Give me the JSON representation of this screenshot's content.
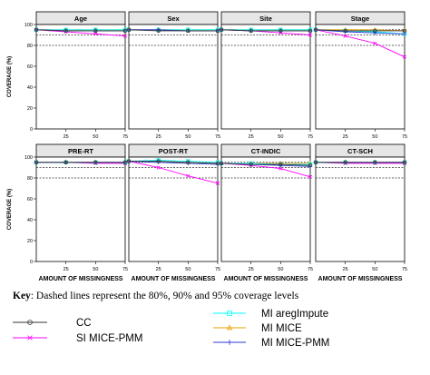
{
  "chart_data": {
    "type": "line",
    "x": [
      0,
      25,
      50,
      75
    ],
    "xticks": [
      "25",
      "50",
      "75"
    ],
    "xlim": [
      0,
      75
    ],
    "ylim": [
      0,
      100
    ],
    "yticks": [
      "0",
      "20",
      "40",
      "60",
      "80",
      "100"
    ],
    "xlabel": "AMOUNT OF MISSINGNESS",
    "ylabel": "COVERAGE (%)",
    "reference_lines": [
      80,
      90,
      95
    ],
    "panels": [
      {
        "title": "Age",
        "series": [
          {
            "name": "CC",
            "values": [
              95,
              94,
              94,
              94
            ]
          },
          {
            "name": "SI MICE-PMM",
            "values": [
              95,
              93,
              91,
              89
            ]
          },
          {
            "name": "MI aregImpute",
            "values": [
              95,
              95,
              95,
              95
            ]
          },
          {
            "name": "MI MICE",
            "values": [
              95,
              95,
              95,
              95
            ]
          },
          {
            "name": "MI MICE-PMM",
            "values": [
              95,
              94,
              94,
              94
            ]
          }
        ]
      },
      {
        "title": "Sex",
        "series": [
          {
            "name": "CC",
            "values": [
              95,
              94,
              94,
              94
            ]
          },
          {
            "name": "SI MICE-PMM",
            "values": [
              95,
              95,
              94,
              94
            ]
          },
          {
            "name": "MI aregImpute",
            "values": [
              95,
              95,
              95,
              95
            ]
          },
          {
            "name": "MI MICE",
            "values": [
              95,
              95,
              95,
              95
            ]
          },
          {
            "name": "MI MICE-PMM",
            "values": [
              95,
              95,
              94,
              94
            ]
          }
        ]
      },
      {
        "title": "Site",
        "series": [
          {
            "name": "CC",
            "values": [
              95,
              94,
              94,
              94
            ]
          },
          {
            "name": "SI MICE-PMM",
            "values": [
              95,
              94,
              92,
              90
            ]
          },
          {
            "name": "MI aregImpute",
            "values": [
              95,
              95,
              95,
              95
            ]
          },
          {
            "name": "MI MICE",
            "values": [
              95,
              95,
              95,
              95
            ]
          },
          {
            "name": "MI MICE-PMM",
            "values": [
              95,
              94,
              94,
              94
            ]
          }
        ]
      },
      {
        "title": "Stage",
        "series": [
          {
            "name": "CC",
            "values": [
              95,
              94,
              94,
              94
            ]
          },
          {
            "name": "SI MICE-PMM",
            "values": [
              95,
              89,
              82,
              69
            ]
          },
          {
            "name": "MI aregImpute",
            "values": [
              95,
              94,
              93,
              91
            ]
          },
          {
            "name": "MI MICE",
            "values": [
              95,
              95,
              95,
              94
            ]
          },
          {
            "name": "MI MICE-PMM",
            "values": [
              95,
              93,
              92,
              91
            ]
          }
        ]
      },
      {
        "title": "PRE-RT",
        "series": [
          {
            "name": "CC",
            "values": [
              95,
              95,
              95,
              95
            ]
          },
          {
            "name": "SI MICE-PMM",
            "values": [
              95,
              95,
              94,
              94
            ]
          },
          {
            "name": "MI aregImpute",
            "values": [
              95,
              95,
              95,
              95
            ]
          },
          {
            "name": "MI MICE",
            "values": [
              95,
              95,
              95,
              95
            ]
          },
          {
            "name": "MI MICE-PMM",
            "values": [
              95,
              95,
              95,
              95
            ]
          }
        ]
      },
      {
        "title": "POST-RT",
        "series": [
          {
            "name": "CC",
            "values": [
              96,
              96,
              95,
              94
            ]
          },
          {
            "name": "SI MICE-PMM",
            "values": [
              96,
              90,
              82,
              75
            ]
          },
          {
            "name": "MI aregImpute",
            "values": [
              96,
              97,
              96,
              95
            ]
          },
          {
            "name": "MI MICE",
            "values": [
              96,
              96,
              95,
              94
            ]
          },
          {
            "name": "MI MICE-PMM",
            "values": [
              96,
              95,
              94,
              93
            ]
          }
        ]
      },
      {
        "title": "CT-INDIC",
        "series": [
          {
            "name": "CC",
            "values": [
              94,
              93,
              93,
              92
            ]
          },
          {
            "name": "SI MICE-PMM",
            "values": [
              94,
              92,
              89,
              81
            ]
          },
          {
            "name": "MI aregImpute",
            "values": [
              94,
              94,
              93,
              93
            ]
          },
          {
            "name": "MI MICE",
            "values": [
              94,
              94,
              94,
              94
            ]
          },
          {
            "name": "MI MICE-PMM",
            "values": [
              94,
              93,
              92,
              91
            ]
          }
        ]
      },
      {
        "title": "CT-SCH",
        "series": [
          {
            "name": "CC",
            "values": [
              95,
              95,
              95,
              95
            ]
          },
          {
            "name": "SI MICE-PMM",
            "values": [
              95,
              94,
              94,
              94
            ]
          },
          {
            "name": "MI aregImpute",
            "values": [
              95,
              95,
              95,
              95
            ]
          },
          {
            "name": "MI MICE",
            "values": [
              95,
              95,
              95,
              95
            ]
          },
          {
            "name": "MI MICE-PMM",
            "values": [
              95,
              95,
              95,
              95
            ]
          }
        ]
      }
    ],
    "legend": {
      "key_label": "Key",
      "key_text": ": Dashed lines represent the 80%, 90% and 95% coverage levels",
      "entries": [
        {
          "name": "CC",
          "color": "#333333",
          "marker": "circle"
        },
        {
          "name": "SI MICE-PMM",
          "color": "#ff00ff",
          "marker": "cross"
        },
        {
          "name": "MI aregImpute",
          "color": "#00ffff",
          "marker": "square"
        },
        {
          "name": "MI MICE",
          "color": "#e6a000",
          "marker": "triangle"
        },
        {
          "name": "MI MICE-PMM",
          "color": "#2b3bd6",
          "marker": "plus"
        }
      ]
    }
  }
}
